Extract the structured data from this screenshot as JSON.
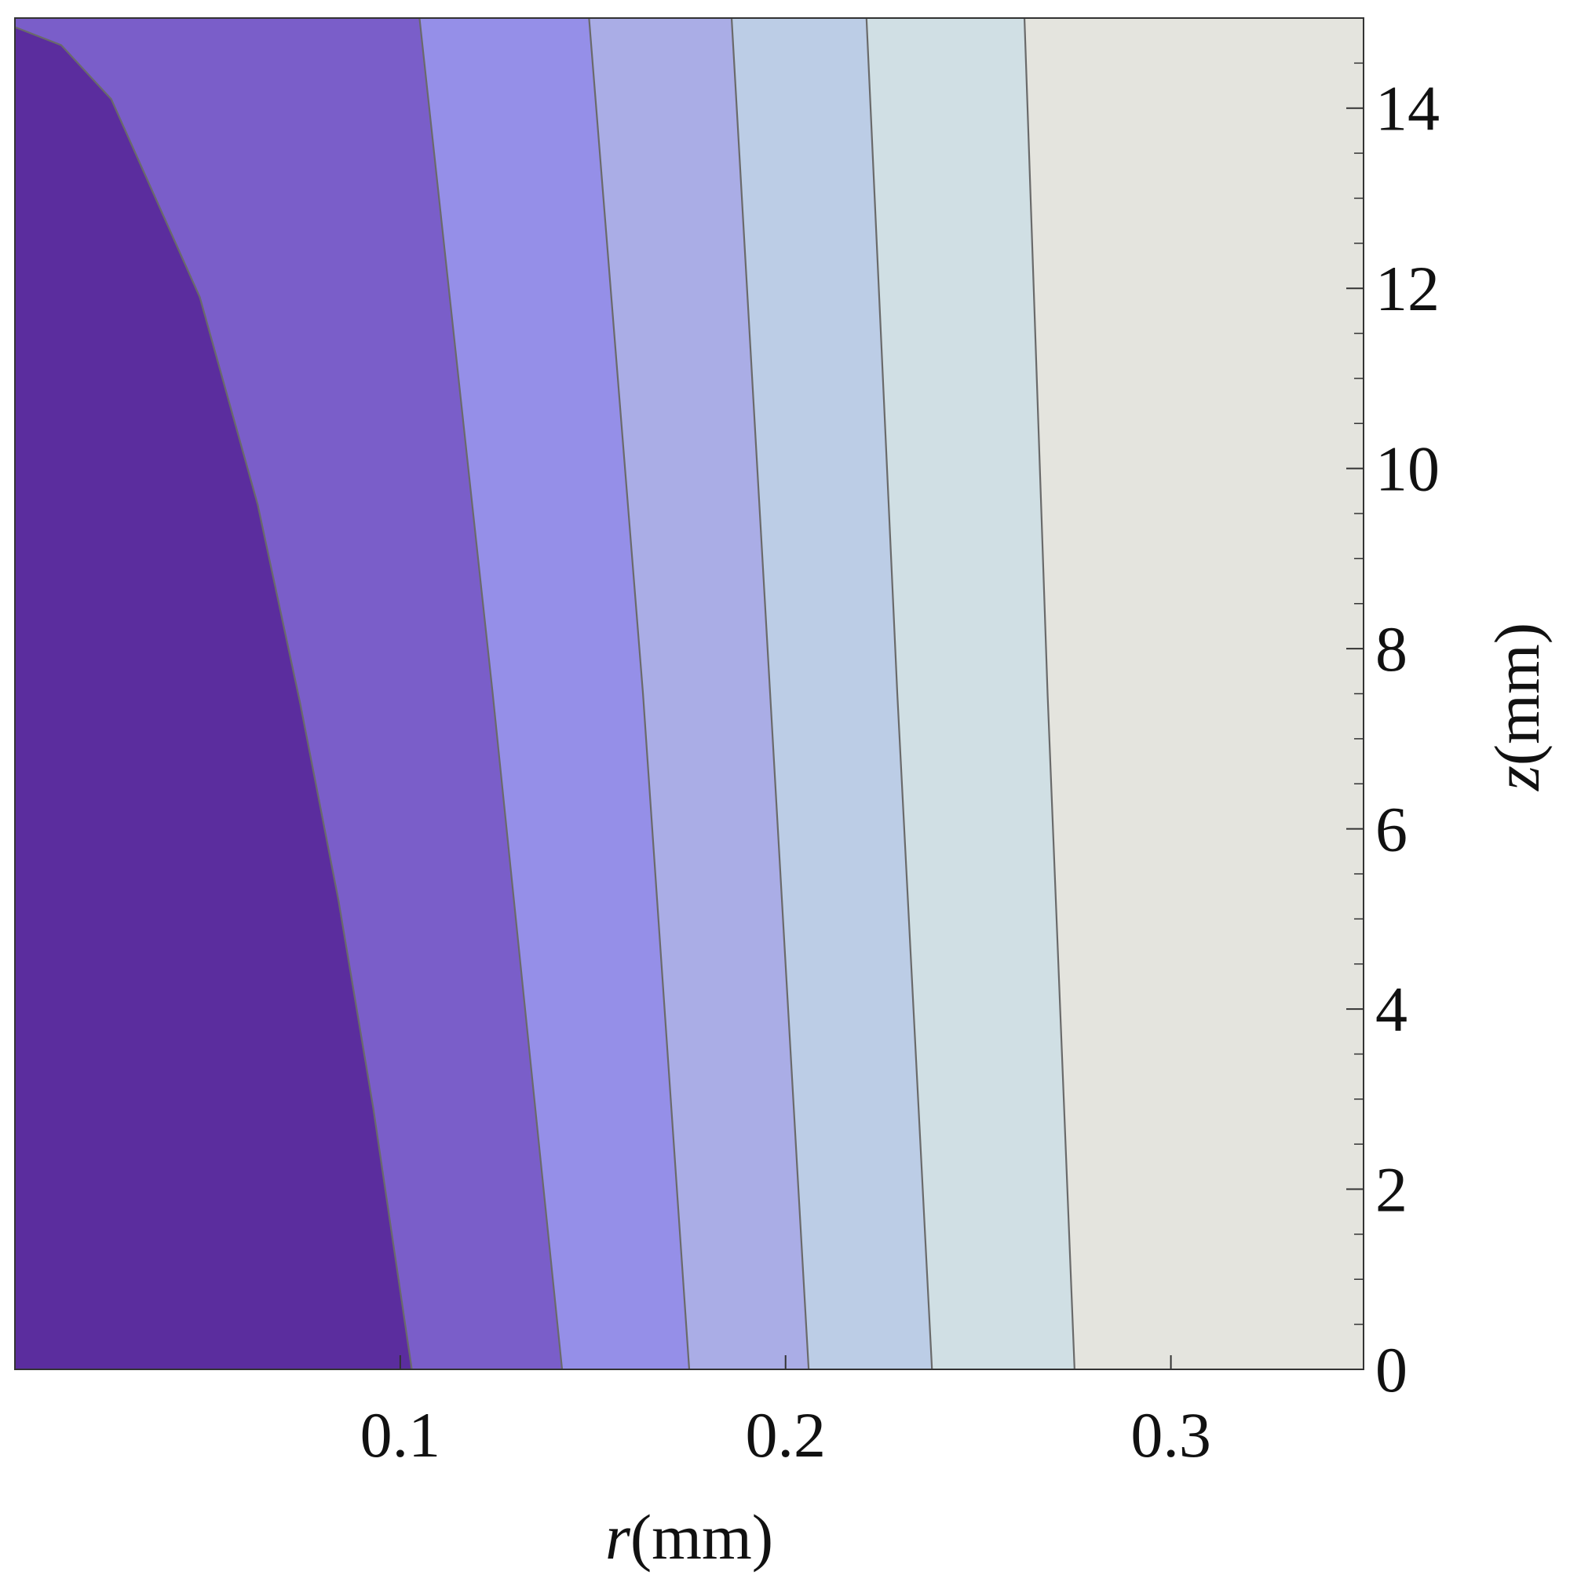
{
  "chart_data": {
    "type": "contour",
    "xlabel": "r(mm)",
    "ylabel": "z(mm)",
    "xlim": [
      0,
      0.35
    ],
    "ylim": [
      0,
      15
    ],
    "xticks": [
      0.1,
      0.2,
      0.3
    ],
    "yticks": [
      0,
      2,
      4,
      6,
      8,
      10,
      12,
      14
    ],
    "yminorticks": [
      0.5,
      1,
      1.5,
      2.5,
      3,
      3.5,
      4.5,
      5,
      5.5,
      6.5,
      7,
      7.5,
      8.5,
      9,
      9.5,
      10.5,
      11,
      11.5,
      12.5,
      13,
      13.5,
      14.5
    ],
    "fill_colors": [
      "#5b2d9e",
      "#7a5ec9",
      "#958fe8",
      "#aaade6",
      "#bccde6",
      "#d0dfe4",
      "#e4e4de"
    ],
    "line_color": "#6a6a6a",
    "contours": [
      {
        "x": [
          0.103,
          0.093,
          0.084,
          0.074,
          0.063,
          0.048,
          0.025,
          0.012,
          0
        ],
        "y": [
          0,
          2.9,
          5.2,
          7.4,
          9.6,
          11.9,
          14.1,
          14.7,
          14.9
        ]
      },
      {
        "x": [
          0.142,
          0.124,
          0.105
        ],
        "y": [
          0,
          7.5,
          15
        ]
      },
      {
        "x": [
          0.175,
          0.163,
          0.149
        ],
        "y": [
          0,
          7.5,
          15
        ]
      },
      {
        "x": [
          0.206,
          0.196,
          0.186
        ],
        "y": [
          0,
          7.5,
          15
        ]
      },
      {
        "x": [
          0.238,
          0.229,
          0.221
        ],
        "y": [
          0,
          7.5,
          15
        ]
      },
      {
        "x": [
          0.275,
          0.268,
          0.262
        ],
        "y": [
          0,
          7.5,
          15
        ]
      }
    ]
  }
}
